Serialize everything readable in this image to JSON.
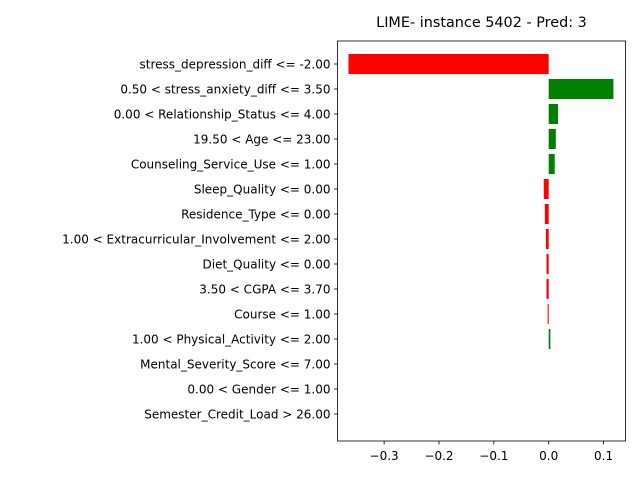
{
  "chart_data": {
    "type": "bar",
    "orientation": "horizontal",
    "title": "LIME- instance 5402 - Pred: 3",
    "xlabel": "",
    "ylabel": "",
    "xlim": [
      -0.385,
      0.14
    ],
    "xticks": [
      -0.3,
      -0.2,
      -0.1,
      0.0,
      0.1
    ],
    "xtick_labels": [
      "−0.3",
      "−0.2",
      "−0.1",
      "0.0",
      "0.1"
    ],
    "grid": false,
    "categories": [
      "stress_depression_diff <= -2.00",
      "0.50 < stress_anxiety_diff <= 3.50",
      "0.00 < Relationship_Status <= 4.00",
      "19.50 < Age <= 23.00",
      "Counseling_Service_Use <= 1.00",
      "Sleep_Quality <= 0.00",
      "Residence_Type <= 0.00",
      "1.00 < Extracurricular_Involvement <= 2.00",
      "Diet_Quality <= 0.00",
      "3.50 < CGPA <= 3.70",
      "Course <= 1.00",
      "1.00 < Physical_Activity <= 2.00",
      "Mental_Severity_Score <= 7.00",
      "0.00 < Gender <= 1.00",
      "Semester_Credit_Load > 26.00"
    ],
    "values": [
      -0.365,
      0.118,
      0.017,
      0.013,
      0.011,
      -0.009,
      -0.007,
      -0.005,
      -0.004,
      -0.004,
      -0.002,
      0.003,
      0.0,
      0.0,
      0.0
    ],
    "colors": {
      "positive": "#008000",
      "negative": "#ff0000"
    }
  }
}
